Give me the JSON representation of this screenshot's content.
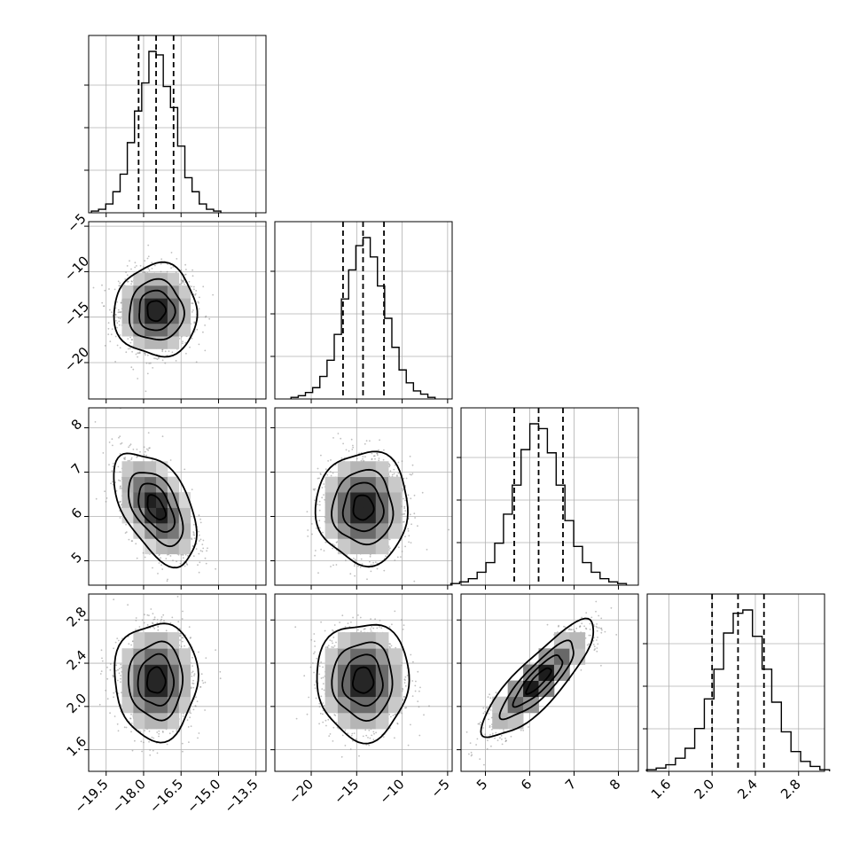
{
  "chart_data": {
    "type": "corner",
    "grid": true,
    "colors": {
      "points": "#8a8a8a",
      "density_low": "#f2f2f2",
      "density_high": "#000000",
      "line": "#000000",
      "grid": "#b0b0b0"
    },
    "parameters": [
      {
        "mean": -17.5,
        "sd": 0.72,
        "range": [
          -20.2,
          -13.1
        ],
        "ticks": [
          "−19.5",
          "−18.0",
          "−16.5",
          "−15.0",
          "−13.5"
        ],
        "tick_values": [
          -19.5,
          -18.0,
          -16.5,
          -15.0,
          -13.5
        ],
        "quantiles": [
          -18.2,
          -17.5,
          -16.8
        ]
      },
      {
        "mean": -14.3,
        "sd": 2.2,
        "range": [
          -24.0,
          -4.5
        ],
        "ticks": [
          "−20",
          "−15",
          "−10",
          "−5"
        ],
        "tick_values": [
          -20,
          -15,
          -10,
          -5
        ],
        "quantiles": [
          -16.5,
          -14.3,
          -12.0
        ]
      },
      {
        "mean": 6.2,
        "sd": 0.55,
        "range": [
          4.45,
          8.45
        ],
        "ticks": [
          "5",
          "6",
          "7",
          "8"
        ],
        "tick_values": [
          5,
          6,
          7,
          8
        ],
        "quantiles": [
          5.65,
          6.2,
          6.75
        ]
      },
      {
        "mean": 2.24,
        "sd": 0.235,
        "range": [
          1.4,
          3.04
        ],
        "ticks": [
          "1.6",
          "2.0",
          "2.4",
          "2.8"
        ],
        "tick_values": [
          1.6,
          2.0,
          2.4,
          2.8
        ],
        "quantiles": [
          2.0,
          2.24,
          2.48
        ]
      }
    ],
    "correlations": [
      {
        "pair": [
          0,
          1
        ],
        "rho": 0.0
      },
      {
        "pair": [
          0,
          2
        ],
        "rho": -0.5
      },
      {
        "pair": [
          1,
          2
        ],
        "rho": 0.0
      },
      {
        "pair": [
          0,
          3
        ],
        "rho": 0.0
      },
      {
        "pair": [
          1,
          3
        ],
        "rho": 0.0
      },
      {
        "pair": [
          2,
          3
        ],
        "rho": 0.85
      }
    ],
    "histogram_counts": [
      [
        1,
        2,
        5,
        12,
        22,
        40,
        58,
        74,
        92,
        90,
        72,
        60,
        38,
        20,
        12,
        5,
        2,
        1
      ],
      [
        1,
        2,
        4,
        7,
        14,
        24,
        40,
        62,
        80,
        95,
        100,
        88,
        70,
        50,
        32,
        18,
        10,
        5,
        3,
        1
      ],
      [
        1,
        2,
        4,
        8,
        14,
        26,
        44,
        62,
        84,
        100,
        97,
        82,
        62,
        40,
        24,
        14,
        8,
        4,
        2,
        1
      ],
      [
        1,
        2,
        4,
        8,
        14,
        26,
        44,
        62,
        84,
        96,
        98,
        82,
        62,
        42,
        24,
        12,
        6,
        3,
        1
      ]
    ],
    "contour_levels": [
      0.12,
      0.39,
      0.68,
      0.93
    ]
  }
}
